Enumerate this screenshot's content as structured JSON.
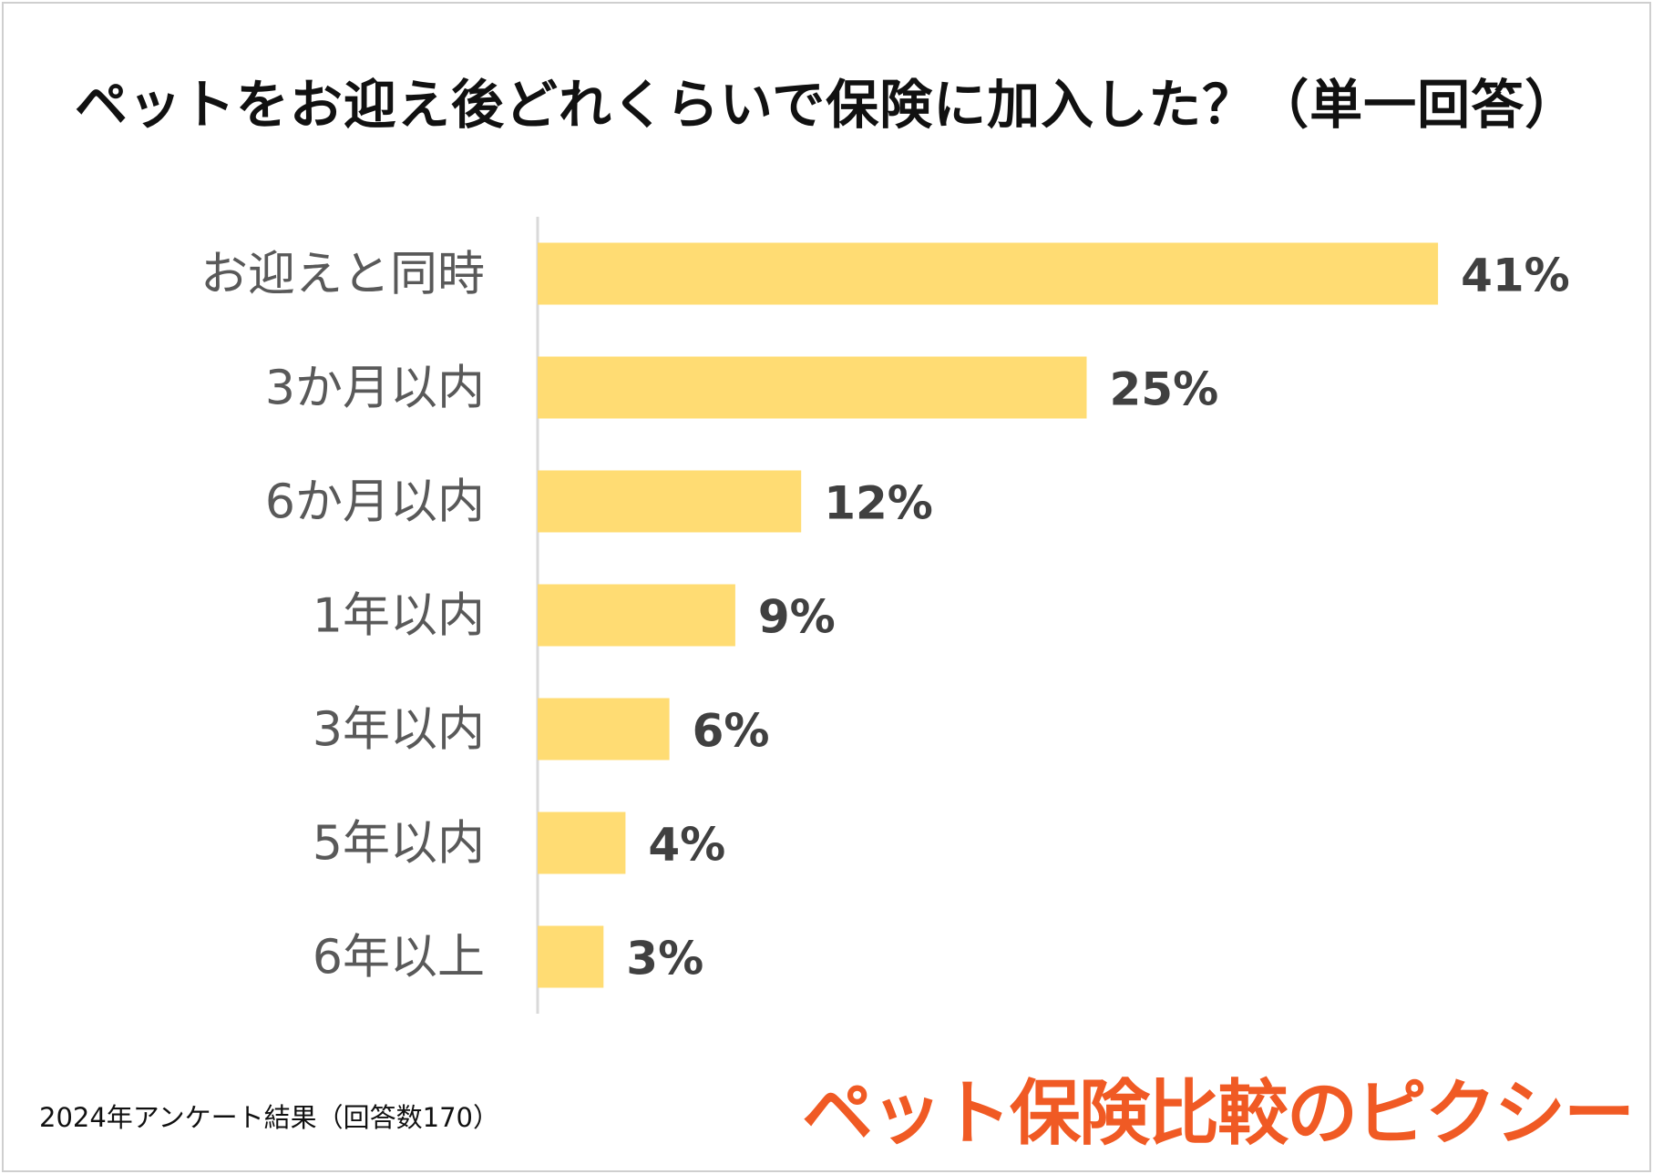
{
  "chart_data": {
    "type": "bar",
    "orientation": "horizontal",
    "title": "ペットをお迎え後どれくらいで保険に加入した？（単一回答）",
    "categories": [
      "お迎えと同時",
      "3か月以内",
      "6か月以内",
      "1年以内",
      "3年以内",
      "5年以内",
      "6年以上"
    ],
    "values": [
      41,
      25,
      12,
      9,
      6,
      4,
      3
    ],
    "value_labels": [
      "41%",
      "25%",
      "12%",
      "9%",
      "6%",
      "4%",
      "3%"
    ],
    "unit": "%",
    "xlim": [
      0,
      45
    ],
    "grid": false,
    "legend": "none",
    "bar_color": "#ffdc73",
    "category_label_color": "#595959",
    "value_label_color": "#404040",
    "axis_color": "#d9d9d9"
  },
  "footnote": "2024年アンケート結果（回答数170）",
  "brand": {
    "text": "ペット保険比較のピクシー",
    "color": "#f05a24"
  }
}
